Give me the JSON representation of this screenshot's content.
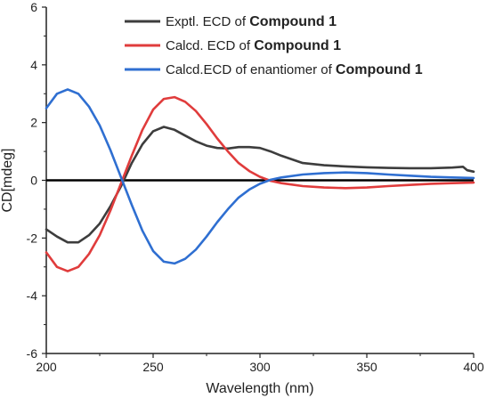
{
  "chart_data": {
    "type": "line",
    "title": "",
    "xlabel": "Wavelength (nm)",
    "ylabel": "CD[mdeg]",
    "xlim": [
      200,
      400
    ],
    "ylim": [
      -6,
      6
    ],
    "x_ticks": [
      200,
      250,
      300,
      350,
      400
    ],
    "y_ticks": [
      -6,
      -4,
      -2,
      0,
      2,
      4,
      6
    ],
    "zero_line": true,
    "grid": false,
    "legend_position": "top-right",
    "series": [
      {
        "name": "Exptl. ECD of ",
        "name_bold": "Compound 1",
        "color": "#3d3d3d",
        "x": [
          200,
          205,
          210,
          215,
          220,
          225,
          230,
          235,
          240,
          245,
          250,
          255,
          260,
          265,
          270,
          275,
          280,
          285,
          290,
          295,
          300,
          305,
          310,
          320,
          330,
          340,
          350,
          360,
          370,
          380,
          390,
          395,
          397,
          400
        ],
        "y": [
          -1.7,
          -1.95,
          -2.15,
          -2.15,
          -1.9,
          -1.5,
          -0.9,
          -0.2,
          0.6,
          1.25,
          1.7,
          1.85,
          1.75,
          1.55,
          1.35,
          1.2,
          1.12,
          1.1,
          1.15,
          1.15,
          1.12,
          1.0,
          0.85,
          0.6,
          0.52,
          0.48,
          0.45,
          0.43,
          0.42,
          0.42,
          0.44,
          0.47,
          0.35,
          0.3
        ]
      },
      {
        "name": "Calcd. ECD of ",
        "name_bold": "Compound 1",
        "color": "#e03c3c",
        "x": [
          200,
          205,
          210,
          215,
          220,
          225,
          230,
          235,
          240,
          245,
          250,
          255,
          260,
          265,
          270,
          275,
          280,
          285,
          290,
          295,
          300,
          305,
          310,
          320,
          330,
          340,
          350,
          360,
          370,
          380,
          390,
          400
        ],
        "y": [
          -2.5,
          -3.0,
          -3.15,
          -3.0,
          -2.55,
          -1.9,
          -1.05,
          -0.1,
          0.85,
          1.75,
          2.45,
          2.82,
          2.88,
          2.72,
          2.4,
          1.95,
          1.45,
          1.0,
          0.6,
          0.32,
          0.12,
          -0.02,
          -0.1,
          -0.2,
          -0.25,
          -0.27,
          -0.25,
          -0.2,
          -0.16,
          -0.12,
          -0.1,
          -0.08
        ]
      },
      {
        "name": "Calcd.ECD of enantiomer of ",
        "name_bold": "Compound 1",
        "color": "#2f6fd1",
        "x": [
          200,
          205,
          210,
          215,
          220,
          225,
          230,
          235,
          240,
          245,
          250,
          255,
          260,
          265,
          270,
          275,
          280,
          285,
          290,
          295,
          300,
          305,
          310,
          320,
          330,
          340,
          350,
          360,
          370,
          380,
          390,
          400
        ],
        "y": [
          2.5,
          3.0,
          3.15,
          3.0,
          2.55,
          1.9,
          1.05,
          0.1,
          -0.85,
          -1.75,
          -2.45,
          -2.82,
          -2.88,
          -2.72,
          -2.4,
          -1.95,
          -1.45,
          -1.0,
          -0.6,
          -0.32,
          -0.12,
          0.02,
          0.1,
          0.2,
          0.25,
          0.27,
          0.25,
          0.2,
          0.16,
          0.12,
          0.1,
          0.08
        ]
      }
    ]
  }
}
